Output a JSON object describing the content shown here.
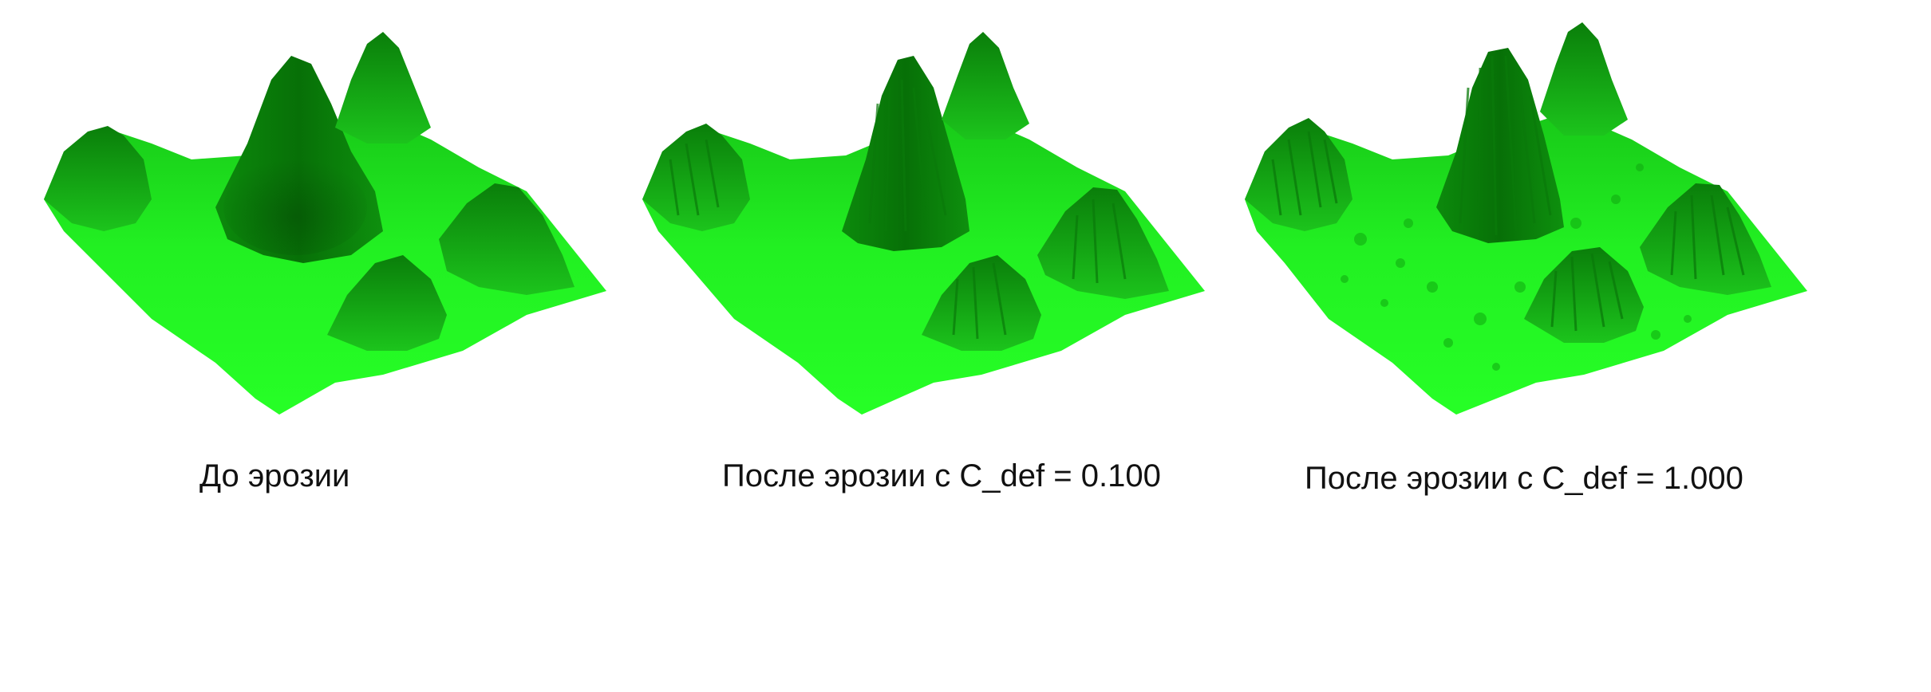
{
  "panels": [
    {
      "caption": "До эрозии"
    },
    {
      "caption": "После эрозии с C_def = 0.100"
    },
    {
      "caption": "После эрозии с C_def = 1.000"
    }
  ],
  "colors": {
    "ground_bright": "#22ff22",
    "ground_mid": "#18d818",
    "ridge_mid": "#10a410",
    "ridge_dark": "#066a06",
    "streak": "#0a7a0a"
  }
}
